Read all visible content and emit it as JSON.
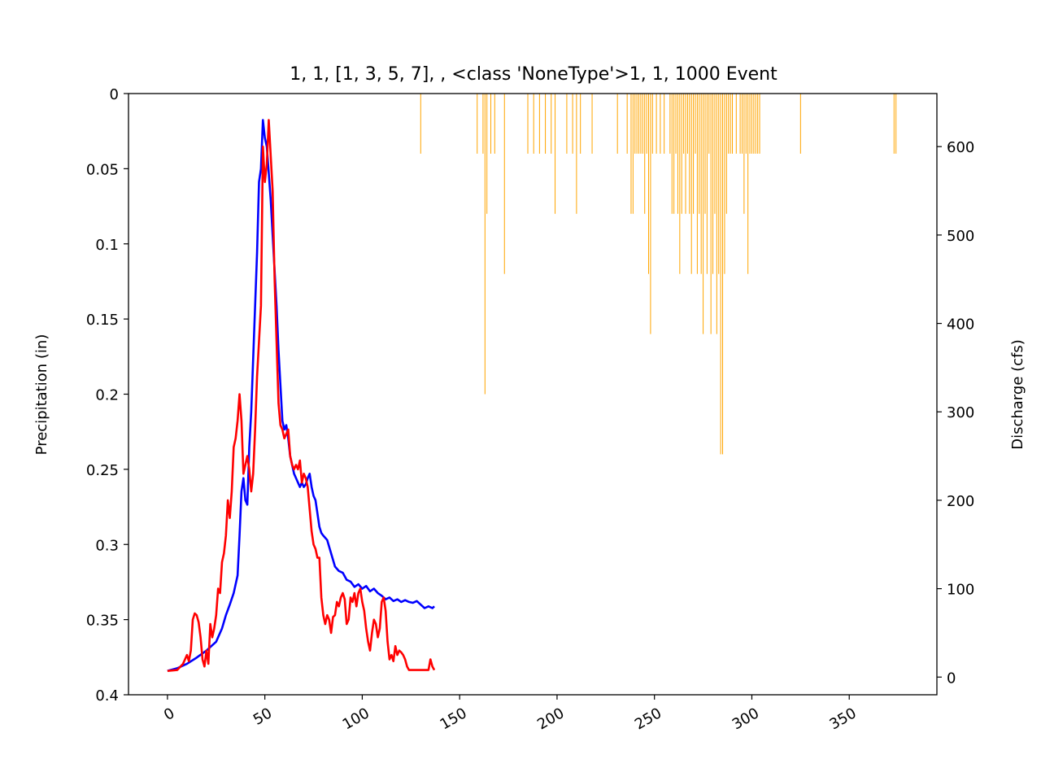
{
  "chart_data": {
    "type": "line",
    "title": "1, 1, [1, 3, 5, 7], , <class 'NoneType'>1, 1, 1000 Event",
    "xlabel": "",
    "ylabel_left": "Precipitation (in)",
    "ylabel_right": "Discharge (cfs)",
    "xlim": [
      -20,
      395
    ],
    "ylim_left": [
      0.4,
      0
    ],
    "ylim_right": [
      -20,
      660
    ],
    "x_ticks": [
      0,
      50,
      100,
      150,
      200,
      250,
      300,
      350
    ],
    "x_tick_labels": [
      "0",
      "50",
      "100",
      "150",
      "200",
      "250",
      "300",
      "350"
    ],
    "y_left_ticks": [
      0,
      0.05,
      0.1,
      0.15,
      0.2,
      0.25,
      0.3,
      0.35,
      0.4
    ],
    "y_left_tick_labels": [
      "0",
      "0.05",
      "0.1",
      "0.15",
      "0.2",
      "0.25",
      "0.3",
      "0.35",
      "0.4"
    ],
    "y_right_ticks": [
      0,
      100,
      200,
      300,
      400,
      500,
      600
    ],
    "y_right_tick_labels": [
      "0",
      "100",
      "200",
      "300",
      "400",
      "500",
      "600"
    ],
    "grid": false,
    "legend": "none",
    "precipitation": {
      "color": "#ffa500",
      "x": [
        130,
        159,
        162,
        163,
        164,
        166,
        168,
        173,
        185,
        188,
        191,
        194,
        197,
        199,
        205,
        208,
        210,
        212,
        218,
        231,
        236,
        238,
        239,
        240,
        241,
        242,
        243,
        244,
        245,
        246,
        247,
        248,
        249,
        251,
        253,
        255,
        258,
        259,
        260,
        261,
        262,
        263,
        264,
        265,
        266,
        267,
        268,
        269,
        270,
        271,
        272,
        273,
        274,
        275,
        276,
        277,
        278,
        279,
        280,
        281,
        282,
        283,
        284,
        285,
        286,
        287,
        288,
        289,
        290,
        292,
        294,
        295,
        296,
        297,
        298,
        299,
        300,
        301,
        302,
        303,
        304,
        325,
        373,
        374
      ],
      "values": [
        0.04,
        0.04,
        0.04,
        0.2,
        0.08,
        0.04,
        0.04,
        0.12,
        0.04,
        0.04,
        0.04,
        0.04,
        0.04,
        0.08,
        0.04,
        0.04,
        0.08,
        0.04,
        0.04,
        0.04,
        0.04,
        0.08,
        0.08,
        0.04,
        0.04,
        0.04,
        0.04,
        0.04,
        0.08,
        0.04,
        0.12,
        0.16,
        0.04,
        0.04,
        0.04,
        0.04,
        0.04,
        0.08,
        0.08,
        0.04,
        0.08,
        0.12,
        0.08,
        0.04,
        0.08,
        0.04,
        0.08,
        0.12,
        0.08,
        0.04,
        0.12,
        0.08,
        0.12,
        0.16,
        0.08,
        0.12,
        0.04,
        0.16,
        0.12,
        0.08,
        0.16,
        0.12,
        0.24,
        0.24,
        0.12,
        0.08,
        0.04,
        0.04,
        0.04,
        0.04,
        0.04,
        0.04,
        0.08,
        0.04,
        0.12,
        0.04,
        0.04,
        0.04,
        0.04,
        0.04,
        0.04,
        0.04,
        0.04,
        0.04
      ]
    },
    "series": [
      {
        "color": "#0000ff",
        "x": [
          0,
          5,
          10,
          15,
          20,
          25,
          28,
          30,
          32,
          34,
          36,
          37,
          38,
          39,
          40,
          41,
          42,
          43,
          44,
          45,
          46,
          47,
          48,
          49,
          50,
          51,
          52,
          53,
          54,
          55,
          56,
          57,
          58,
          59,
          60,
          61,
          62,
          63,
          64,
          65,
          66,
          67,
          68,
          69,
          70,
          71,
          72,
          73,
          74,
          75,
          76,
          77,
          78,
          79,
          80,
          82,
          84,
          86,
          88,
          90,
          92,
          94,
          96,
          98,
          100,
          102,
          104,
          106,
          108,
          110,
          112,
          114,
          116,
          118,
          120,
          122,
          124,
          126,
          128,
          130,
          132,
          134,
          136,
          137
        ],
        "values": [
          7,
          10,
          15,
          22,
          30,
          40,
          55,
          70,
          82,
          95,
          115,
          160,
          210,
          225,
          200,
          195,
          260,
          300,
          360,
          420,
          480,
          560,
          575,
          630,
          610,
          600,
          570,
          540,
          500,
          460,
          420,
          370,
          330,
          290,
          280,
          285,
          270,
          250,
          240,
          230,
          225,
          220,
          215,
          220,
          215,
          218,
          225,
          230,
          215,
          205,
          200,
          185,
          170,
          163,
          160,
          155,
          140,
          125,
          120,
          118,
          110,
          108,
          102,
          105,
          100,
          103,
          97,
          100,
          95,
          92,
          88,
          90,
          86,
          88,
          85,
          87,
          85,
          84,
          86,
          82,
          78,
          80,
          78,
          80
        ]
      },
      {
        "color": "#ff0000",
        "x": [
          0,
          5,
          8,
          10,
          11,
          12,
          13,
          14,
          15,
          16,
          17,
          18,
          19,
          20,
          21,
          22,
          23,
          24,
          25,
          26,
          27,
          28,
          29,
          30,
          31,
          32,
          33,
          34,
          35,
          36,
          37,
          38,
          39,
          40,
          41,
          42,
          43,
          44,
          45,
          46,
          47,
          48,
          49,
          50,
          51,
          52,
          53,
          54,
          55,
          56,
          57,
          58,
          59,
          60,
          61,
          62,
          63,
          64,
          65,
          66,
          67,
          68,
          69,
          70,
          71,
          72,
          73,
          74,
          75,
          76,
          77,
          78,
          79,
          80,
          81,
          82,
          83,
          84,
          85,
          86,
          87,
          88,
          89,
          90,
          91,
          92,
          93,
          94,
          95,
          96,
          97,
          98,
          99,
          100,
          101,
          102,
          103,
          104,
          105,
          106,
          107,
          108,
          109,
          110,
          111,
          112,
          113,
          114,
          115,
          116,
          117,
          118,
          119,
          120,
          121,
          122,
          123,
          124,
          125,
          126,
          127,
          128,
          129,
          130,
          131,
          132,
          133,
          134,
          135,
          136,
          137
        ],
        "values": [
          7,
          8,
          15,
          25,
          18,
          30,
          65,
          72,
          70,
          62,
          45,
          20,
          12,
          30,
          15,
          60,
          45,
          55,
          70,
          100,
          95,
          130,
          140,
          160,
          200,
          180,
          210,
          260,
          270,
          290,
          320,
          290,
          230,
          240,
          250,
          235,
          210,
          230,
          280,
          340,
          380,
          420,
          600,
          560,
          580,
          630,
          590,
          550,
          450,
          380,
          310,
          285,
          280,
          270,
          275,
          280,
          250,
          240,
          235,
          240,
          235,
          245,
          220,
          230,
          225,
          215,
          190,
          165,
          150,
          145,
          135,
          135,
          90,
          70,
          60,
          70,
          65,
          50,
          68,
          70,
          85,
          80,
          90,
          95,
          88,
          60,
          65,
          90,
          85,
          95,
          80,
          95,
          100,
          85,
          75,
          55,
          40,
          30,
          50,
          65,
          60,
          45,
          55,
          85,
          90,
          75,
          40,
          20,
          25,
          18,
          35,
          25,
          30,
          28,
          25,
          20,
          12,
          8,
          8,
          8,
          8,
          8,
          8,
          8,
          8,
          8,
          8,
          8,
          20,
          12,
          8
        ]
      }
    ]
  }
}
